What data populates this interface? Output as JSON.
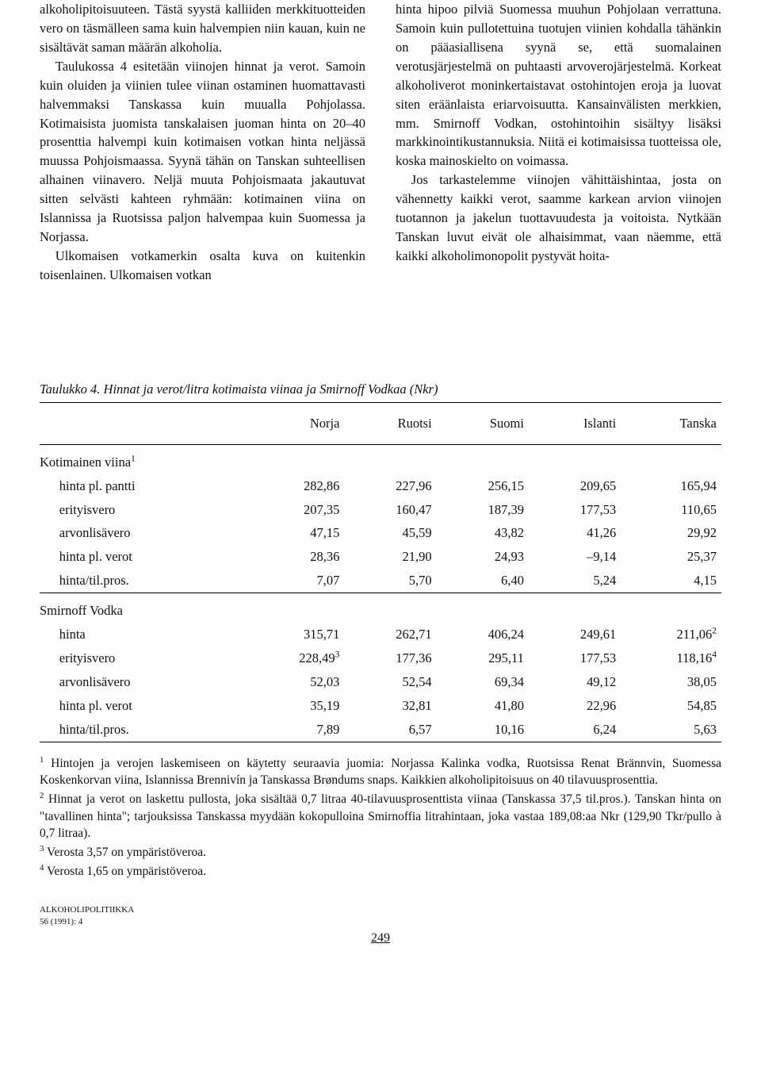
{
  "text": {
    "col1_p1": "alkoholipitoisuuteen. Tästä syystä kalliiden merkkituotteiden vero on täsmälleen sama kuin halvempien niin kauan, kuin ne sisältävät saman määrän alkoholia.",
    "col1_p2": "Taulukossa 4 esitetään viinojen hinnat ja verot. Samoin kuin oluiden ja viinien tulee viinan ostaminen huomattavasti halvemmaksi Tanskassa kuin muualla Pohjolassa. Kotimaisista juomista tanskalaisen juoman hinta on 20–40 prosenttia halvempi kuin kotimaisen votkan hinta neljässä muussa Pohjoismaassa. Syynä tähän on Tanskan suhteellisen alhainen viinavero. Neljä muuta Pohjoismaata jakautuvat sitten selvästi kahteen ryhmään: kotimainen viina on Islannissa ja Ruotsissa paljon halvempaa kuin Suomessa ja Norjassa.",
    "col1_p3": "Ulkomaisen votkamerkin osalta kuva on kuitenkin toisenlainen. Ulkomaisen votkan",
    "col2_p1": "hinta hipoo pilviä Suomessa muuhun Pohjolaan verrattuna. Samoin kuin pullotettuina tuotujen viinien kohdalla tähänkin on pääasiallisena syynä se, että suomalainen verotusjärjestelmä on puhtaasti arvoverojärjestelmä. Korkeat alkoholiverot moninkertaistavat ostohintojen eroja ja luovat siten eräänlaista eriarvoisuutta. Kansainvälisten merkkien, mm. Smirnoff Vodkan, ostohintoihin sisältyy lisäksi markkinointikustannuksia. Niitä ei kotimaisissa tuotteissa ole, koska mainoskielto on voimassa.",
    "col2_p2": "Jos tarkastelemme viinojen vähittäishintaa, josta on vähennetty kaikki verot, saamme karkean arvion viinojen tuotannon ja jakelun tuottavuudesta ja voitoista. Nytkään Tanskan luvut eivät ole alhaisimmat, vaan näemme, että kaikki alkoholimonopolit pystyvät hoita-"
  },
  "table": {
    "caption_prefix": "Taulukko 4.",
    "caption_rest": " Hinnat ja verot/litra kotimaista viinaa ja Smirnoff Vodkaa (Nkr)",
    "columns": [
      "",
      "Norja",
      "Ruotsi",
      "Suomi",
      "Islanti",
      "Tanska"
    ],
    "section1_label": "Kotimainen viina",
    "section1_sup": "1",
    "section1_rows": [
      {
        "label": "hinta pl. pantti",
        "vals": [
          "282,86",
          "227,96",
          "256,15",
          "209,65",
          "165,94"
        ]
      },
      {
        "label": "erityisvero",
        "vals": [
          "207,35",
          "160,47",
          "187,39",
          "177,53",
          "110,65"
        ]
      },
      {
        "label": "arvonlisävero",
        "vals": [
          "47,15",
          "45,59",
          "43,82",
          "41,26",
          "29,92"
        ]
      },
      {
        "label": "hinta pl. verot",
        "vals": [
          "28,36",
          "21,90",
          "24,93",
          "–9,14",
          "25,37"
        ]
      },
      {
        "label": "hinta/til.pros.",
        "vals": [
          "7,07",
          "5,70",
          "6,40",
          "5,24",
          "4,15"
        ]
      }
    ],
    "section2_label": "Smirnoff Vodka",
    "section2_rows": [
      {
        "label": "hinta",
        "vals": [
          "315,71",
          "262,71",
          "406,24",
          "249,61",
          "211,06"
        ],
        "sups": [
          "",
          "",
          "",
          "",
          "2"
        ]
      },
      {
        "label": "erityisvero",
        "vals": [
          "228,49",
          "177,36",
          "295,11",
          "177,53",
          "118,16"
        ],
        "sups": [
          "3",
          "",
          "",
          "",
          "4"
        ]
      },
      {
        "label": "arvonlisävero",
        "vals": [
          "52,03",
          "52,54",
          "69,34",
          "49,12",
          "38,05"
        ]
      },
      {
        "label": "hinta pl. verot",
        "vals": [
          "35,19",
          "32,81",
          "41,80",
          "22,96",
          "54,85"
        ]
      },
      {
        "label": "hinta/til.pros.",
        "vals": [
          "7,89",
          "6,57",
          "10,16",
          "6,24",
          "5,63"
        ]
      }
    ]
  },
  "footnotes": {
    "f1_sup": "1",
    "f1": " Hintojen ja verojen laskemiseen on käytetty seuraavia juomia: Norjassa Kalinka vodka, Ruotsissa Renat Brännvin, Suomessa Koskenkorvan viina, Islannissa Brennivín ja Tanskassa Brøndums snaps. Kaikkien alkoholipitoisuus on 40 tilavuusprosenttia.",
    "f2_sup": "2",
    "f2": " Hinnat ja verot on laskettu pullosta, joka sisältää 0,7 litraa 40-tilavuusprosenttista viinaa (Tanskassa 37,5 til.pros.). Tanskan hinta on \"tavallinen hinta\"; tarjouksissa Tanskassa myydään kokopulloina Smirnoffia litrahintaan, joka vastaa 189,08:aa Nkr (129,90 Tkr/pullo à 0,7 litraa).",
    "f3_sup": "3",
    "f3": " Verosta 3,57 on ympäristöveroa.",
    "f4_sup": "4",
    "f4": " Verosta 1,65 on ympäristöveroa."
  },
  "footer": {
    "journal": "ALKOHOLIPOLITIIKKA",
    "issue": "56 (1991): 4",
    "page": "249"
  },
  "style": {
    "text_color": "#111111",
    "background": "#fefefe",
    "rule_color": "#000000"
  }
}
